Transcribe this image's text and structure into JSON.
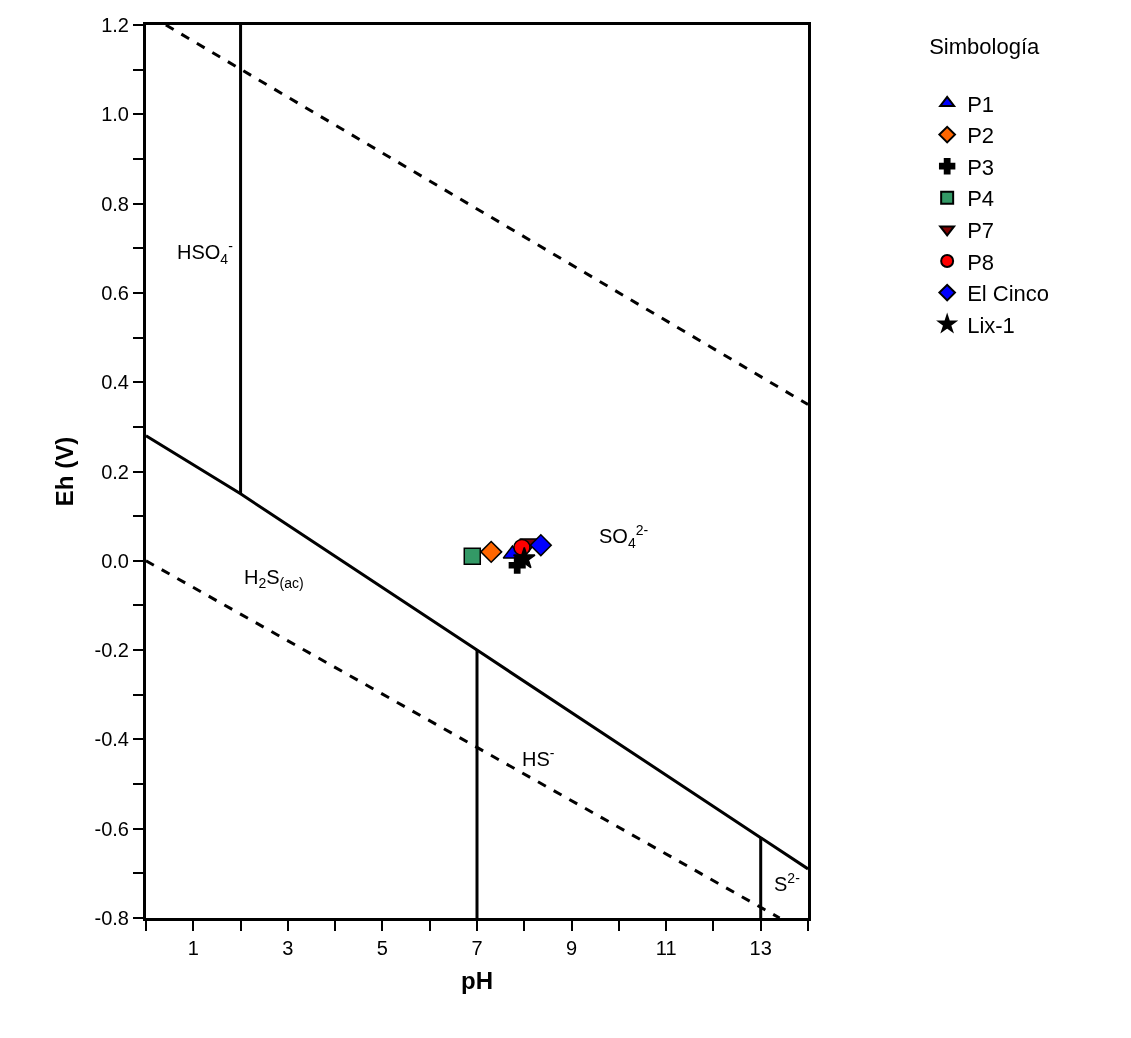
{
  "chart_data": {
    "type": "scatter",
    "xlabel": "pH",
    "ylabel": "Eh (V)",
    "legend_title": "Simbología",
    "xlim": [
      0,
      14
    ],
    "ylim": [
      -0.8,
      1.2
    ],
    "xticks": [
      {
        "value": 0,
        "label": null
      },
      1,
      {
        "value": 2,
        "label": null
      },
      3,
      {
        "value": 4,
        "label": null
      },
      5,
      {
        "value": 6,
        "label": null
      },
      7,
      {
        "value": 8,
        "label": null
      },
      9,
      {
        "value": 10,
        "label": null
      },
      11,
      {
        "value": 12,
        "label": null
      },
      13,
      {
        "value": 14,
        "label": null
      }
    ],
    "yticks": [
      {
        "value": -0.8,
        "label": "-0.8"
      },
      {
        "value": -0.7,
        "label": null
      },
      {
        "value": -0.6,
        "label": "-0.6"
      },
      {
        "value": -0.5,
        "label": null
      },
      {
        "value": -0.4,
        "label": "-0.4"
      },
      {
        "value": -0.3,
        "label": null
      },
      {
        "value": -0.2,
        "label": "-0.2"
      },
      {
        "value": -0.1,
        "label": null
      },
      {
        "value": 0,
        "label": "0.0"
      },
      {
        "value": 0.1,
        "label": null
      },
      {
        "value": 0.2,
        "label": "0.2"
      },
      {
        "value": 0.3,
        "label": null
      },
      {
        "value": 0.4,
        "label": "0.4"
      },
      {
        "value": 0.5,
        "label": null
      },
      {
        "value": 0.6,
        "label": "0.6"
      },
      {
        "value": 0.7,
        "label": null
      },
      {
        "value": 0.8,
        "label": "0.8"
      },
      {
        "value": 0.9,
        "label": null
      },
      {
        "value": 1.0,
        "label": "1.0"
      },
      {
        "value": 1.1,
        "label": null
      },
      {
        "value": 1.2,
        "label": "1.2"
      }
    ],
    "legend": "top right",
    "series": [
      {
        "type": "line",
        "color": "#000000",
        "line_style": "dashed",
        "marker": "none",
        "x": [
          0.42,
          14
        ],
        "values": [
          1.2,
          0.35
        ]
      },
      {
        "type": "line",
        "color": "#000000",
        "line_style": "dashed",
        "marker": "none",
        "x": [
          0,
          13.4
        ],
        "values": [
          0.0,
          -0.8
        ]
      },
      {
        "type": "line",
        "color": "#000000",
        "line_style": "solid",
        "marker": "none",
        "x": [
          0,
          2,
          7,
          13,
          14
        ],
        "values": [
          0.28,
          0.15,
          -0.2,
          -0.62,
          -0.69
        ]
      },
      {
        "type": "line",
        "color": "#000000",
        "line_style": "solid",
        "marker": "none",
        "x": [
          2,
          2
        ],
        "values": [
          0.15,
          1.2
        ]
      },
      {
        "type": "line",
        "color": "#000000",
        "line_style": "solid",
        "marker": "none",
        "x": [
          7,
          7
        ],
        "values": [
          -0.2,
          -0.8
        ]
      },
      {
        "type": "line",
        "color": "#000000",
        "line_style": "solid",
        "marker": "none",
        "x": [
          13,
          13
        ],
        "values": [
          -0.62,
          -0.8
        ]
      },
      {
        "name": "P1",
        "color": "#0000ff",
        "marker": "triangle",
        "x": [
          7.75
        ],
        "values": [
          0.015
        ]
      },
      {
        "name": "P2",
        "color": "#ff6600",
        "marker": "diamond",
        "x": [
          7.3
        ],
        "values": [
          0.02
        ]
      },
      {
        "name": "P3",
        "color": "#000000",
        "marker": "cross",
        "x": [
          7.85
        ],
        "values": [
          -0.01
        ]
      },
      {
        "name": "P4",
        "color": "#339966",
        "marker": "square",
        "x": [
          6.9
        ],
        "values": [
          0.01
        ]
      },
      {
        "name": "P7",
        "color": "#800000",
        "marker": "triangle-down",
        "x": [
          8.1
        ],
        "values": [
          0.04
        ]
      },
      {
        "name": "P8",
        "color": "#ff0000",
        "marker": "circle",
        "x": [
          7.95
        ],
        "values": [
          0.03
        ]
      },
      {
        "name": "El Cinco",
        "color": "#0000ff",
        "marker": "diamond",
        "x": [
          8.35
        ],
        "values": [
          0.035
        ]
      },
      {
        "name": "Lix-1",
        "color": "#000000",
        "marker": "star",
        "x": [
          8.0
        ],
        "values": [
          0.005
        ]
      }
    ],
    "annotations": [
      "HSO$_{4}$$^{-}$",
      "H$_{2}$S$_{(ac)}$",
      "HS$^{-}$",
      "SO$_{4}$$^{2-}$",
      "S$^{2-}$"
    ]
  }
}
